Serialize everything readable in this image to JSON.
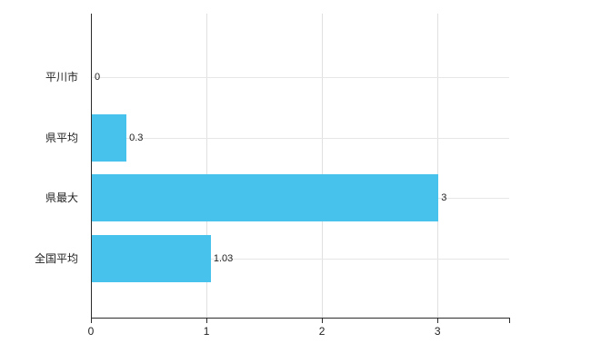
{
  "chart_data": {
    "type": "bar",
    "orientation": "horizontal",
    "categories": [
      "平川市",
      "県平均",
      "県最大",
      "全国平均"
    ],
    "values": [
      0,
      0.3,
      3,
      1.03
    ],
    "value_labels": [
      "0",
      "0.3",
      "3",
      "1.03"
    ],
    "title": "",
    "xlabel": "",
    "ylabel": "",
    "xlim": [
      0,
      3.62
    ],
    "x_ticks": [
      0,
      1,
      2,
      3
    ],
    "x_tick_labels": [
      "0",
      "1",
      "2",
      "3"
    ],
    "grid": "on",
    "legend": "none",
    "bar_color": "#47C2ED",
    "axis_color": "#2b2b2b",
    "grid_color": "#e0e0e0"
  }
}
